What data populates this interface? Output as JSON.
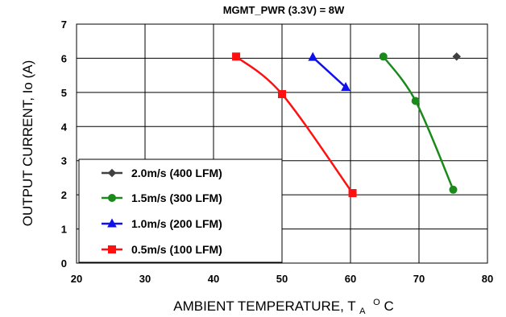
{
  "chart_data": {
    "type": "line",
    "title": "MGMT_PWR (3.3V) =  8W",
    "xlabel_main": "AMBIENT TEMPERATURE, T",
    "xlabel_sub": "A",
    "xlabel_sup": "O",
    "xlabel_unit": "C",
    "ylabel": "OUTPUT CURRENT, Io  (A)",
    "xlim": [
      20,
      80
    ],
    "ylim": [
      0,
      7
    ],
    "x_ticks": [
      "20",
      "30",
      "40",
      "50",
      "60",
      "70",
      "80"
    ],
    "y_ticks": [
      "0",
      "1",
      "2",
      "3",
      "4",
      "5",
      "6",
      "7"
    ],
    "grid": true,
    "legend_position": "bottom-left",
    "series": [
      {
        "name": "2.0m/s (400 LFM)",
        "color": "#404040",
        "marker": "diamond",
        "x": [
          75.5
        ],
        "y": [
          6.05
        ]
      },
      {
        "name": "1.5m/s (300 LFM)",
        "color": "#1a8a1a",
        "marker": "circle",
        "x": [
          64.8,
          69.5,
          75.0
        ],
        "y": [
          6.05,
          4.75,
          2.15
        ]
      },
      {
        "name": "1.0m/s (200 LFM)",
        "color": "#1010ee",
        "marker": "triangle",
        "x": [
          54.5,
          59.3
        ],
        "y": [
          6.03,
          5.15
        ]
      },
      {
        "name": "0.5m/s (100 LFM)",
        "color": "#ff1010",
        "marker": "square",
        "x": [
          43.3,
          50.0,
          60.3
        ],
        "y": [
          6.05,
          4.95,
          2.05
        ]
      }
    ]
  }
}
